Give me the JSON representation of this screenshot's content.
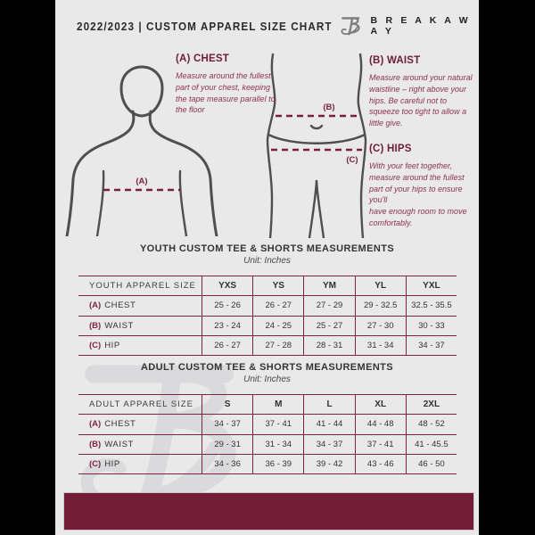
{
  "header": {
    "title": "2022/2023  |  CUSTOM APPAREL SIZE CHART",
    "brand": "B R E A K A W A Y"
  },
  "instructions": {
    "chest": {
      "heading": "(A) CHEST",
      "body": "Measure around the fullest part of your chest, keeping the tape measure parallel to the floor"
    },
    "waist": {
      "heading": "(B) WAIST",
      "body": "Measure around your natural waistline – right above your hips. Be careful not to squeeze too tight to allow a little give."
    },
    "hips": {
      "heading": "(C) HIPS",
      "body": "With your feet together, measure around the fullest part of your hips to ensure you'll\nhave enough room to move comfortably."
    }
  },
  "figure_labels": {
    "chest": "(A)",
    "waist": "(B)",
    "hips": "(C)"
  },
  "youth_table": {
    "title": "YOUTH CUSTOM TEE & SHORTS MEASUREMENTS",
    "unit": "Unit: Inches",
    "header": [
      "YOUTH APPAREL SIZE",
      "YXS",
      "YS",
      "YM",
      "YL",
      "YXL"
    ],
    "rows": [
      {
        "prefix": "(A)",
        "label": "CHEST",
        "values": [
          "25 - 26",
          "26 - 27",
          "27 - 29",
          "29 - 32.5",
          "32.5 - 35.5"
        ]
      },
      {
        "prefix": "(B)",
        "label": "WAIST",
        "values": [
          "23 - 24",
          "24 - 25",
          "25 - 27",
          "27 - 30",
          "30 - 33"
        ]
      },
      {
        "prefix": "(C)",
        "label": "HIP",
        "values": [
          "26 - 27",
          "27 - 28",
          "28 - 31",
          "31 - 34",
          "34 - 37"
        ]
      }
    ]
  },
  "adult_table": {
    "title": "ADULT CUSTOM TEE & SHORTS MEASUREMENTS",
    "unit": "Unit: Inches",
    "header": [
      "ADULT APPAREL SIZE",
      "S",
      "M",
      "L",
      "XL",
      "2XL"
    ],
    "rows": [
      {
        "prefix": "(A)",
        "label": "CHEST",
        "values": [
          "34 - 37",
          "37 - 41",
          "41 - 44",
          "44 - 48",
          "48 - 52"
        ]
      },
      {
        "prefix": "(B)",
        "label": "WAIST",
        "values": [
          "29 - 31",
          "31 - 34",
          "34 - 37",
          "37 - 41",
          "41 - 45.5"
        ]
      },
      {
        "prefix": "(C)",
        "label": "HIP",
        "values": [
          "34 - 36",
          "36 - 39",
          "39 - 42",
          "43 - 46",
          "46 - 50"
        ]
      }
    ]
  },
  "colors": {
    "maroon": "#741d38",
    "table_line": "#7d2442",
    "background": "#e9e9ea",
    "letterbox": "#000000",
    "text_dark": "#2b2a2b"
  }
}
